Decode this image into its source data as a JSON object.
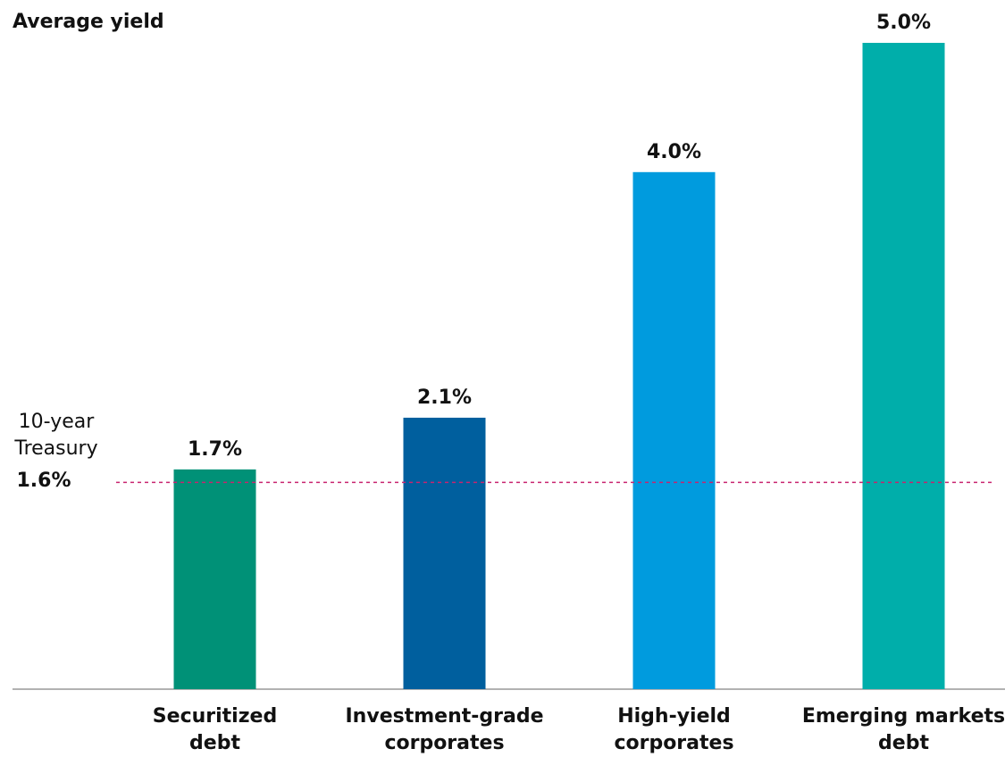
{
  "chart_data": {
    "type": "bar",
    "title": "Average yield",
    "categories": [
      "Securitized\ndebt",
      "Investment-grade\ncorporates",
      "High-yield\ncorporates",
      "Emerging markets\ndebt"
    ],
    "values": [
      1.7,
      2.1,
      4.0,
      5.0
    ],
    "value_labels": [
      "1.7%",
      "2.1%",
      "4.0%",
      "5.0%"
    ],
    "colors": [
      "#009177",
      "#005f9e",
      "#009bde",
      "#00aeaa"
    ],
    "ylim": [
      0,
      5
    ],
    "reference_line": {
      "label": "10-year\nTreasury",
      "value": 1.6,
      "value_label": "1.6%",
      "color": "#c8246f"
    }
  }
}
